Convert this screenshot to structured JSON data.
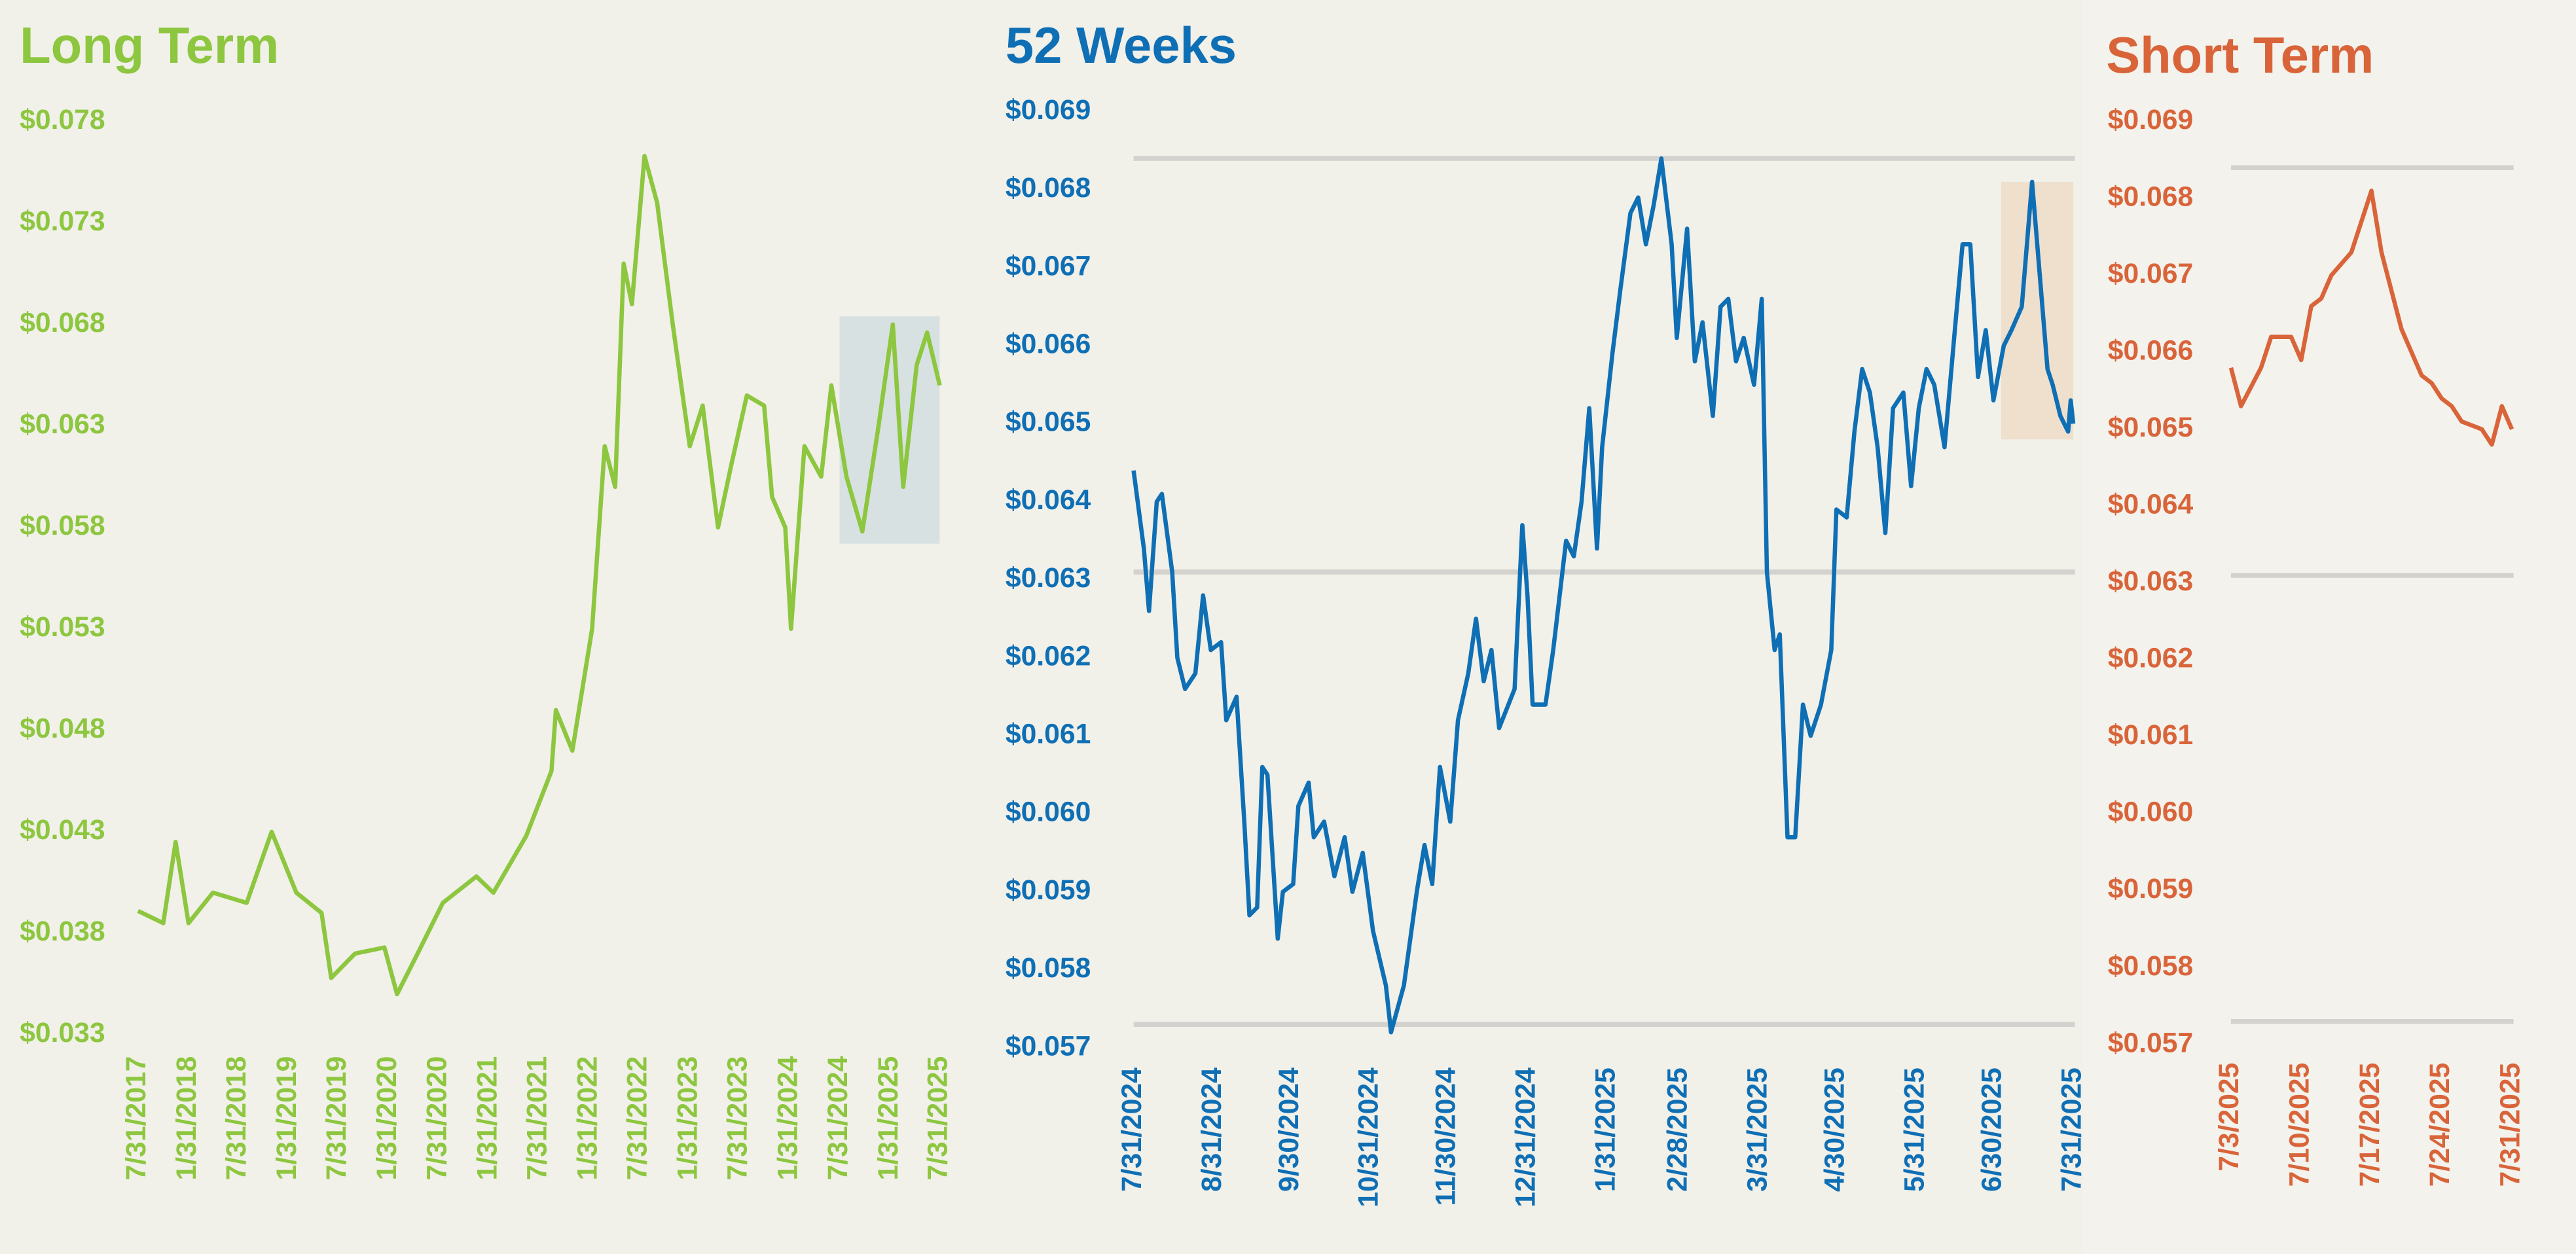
{
  "chart_data": [
    {
      "type": "line",
      "title": "Long Term",
      "color": "#8dc63f",
      "highlight_color": "#d3dedf",
      "x": [
        "7/31/2017",
        "10/31/2017",
        "12/15/2017",
        "1/31/2018",
        "4/30/2018",
        "8/31/2018",
        "11/30/2018",
        "2/28/2019",
        "5/31/2019",
        "7/5/2019",
        "9/30/2019",
        "1/15/2020",
        "3/1/2020",
        "5/15/2020",
        "8/15/2020",
        "12/15/2020",
        "2/15/2021",
        "6/15/2021",
        "9/15/2021",
        "10/1/2021",
        "11/30/2021",
        "2/10/2022",
        "3/28/2022",
        "5/5/2022",
        "6/5/2022",
        "7/5/2022",
        "8/20/2022",
        "10/5/2022",
        "12/1/2022",
        "2/1/2023",
        "3/20/2023",
        "5/15/2023",
        "7/1/2023",
        "8/28/2023",
        "10/30/2023",
        "11/28/2023",
        "1/15/2024",
        "2/5/2024",
        "3/25/2024",
        "5/25/2024",
        "7/1/2024",
        "8/25/2024",
        "10/22/2024",
        "12/20/2024",
        "2/10/2025",
        "3/20/2025",
        "5/8/2025",
        "6/15/2025",
        "7/31/2025"
      ],
      "values": [
        0.0391,
        0.0385,
        0.0425,
        0.0385,
        0.04,
        0.0395,
        0.043,
        0.04,
        0.039,
        0.0358,
        0.037,
        0.0373,
        0.035,
        0.037,
        0.0395,
        0.0408,
        0.04,
        0.0428,
        0.046,
        0.049,
        0.047,
        0.053,
        0.062,
        0.06,
        0.071,
        0.069,
        0.0763,
        0.074,
        0.068,
        0.062,
        0.064,
        0.058,
        0.061,
        0.0645,
        0.064,
        0.0595,
        0.058,
        0.053,
        0.062,
        0.0605,
        0.065,
        0.0605,
        0.0578,
        0.063,
        0.068,
        0.06,
        0.066,
        0.0676,
        0.065
      ],
      "xlim": [
        "7/31/2017",
        "7/31/2025"
      ],
      "xticks": [
        "7/31/2017",
        "1/31/2018",
        "7/31/2018",
        "1/31/2019",
        "7/31/2019",
        "1/31/2020",
        "7/31/2020",
        "1/31/2021",
        "7/31/2021",
        "1/31/2022",
        "7/31/2022",
        "1/31/2023",
        "7/31/2023",
        "1/31/2024",
        "7/31/2024",
        "1/31/2025",
        "7/31/2025"
      ],
      "ylim": [
        0.033,
        0.078
      ],
      "yticks": [
        {
          "value": 0.033,
          "label": "$0.033"
        },
        {
          "value": 0.038,
          "label": "$0.038"
        },
        {
          "value": 0.043,
          "label": "$0.043"
        },
        {
          "value": 0.048,
          "label": "$0.048"
        },
        {
          "value": 0.053,
          "label": "$0.053"
        },
        {
          "value": 0.058,
          "label": "$0.058"
        },
        {
          "value": 0.063,
          "label": "$0.063"
        },
        {
          "value": 0.068,
          "label": "$0.068"
        },
        {
          "value": 0.073,
          "label": "$0.073"
        },
        {
          "value": 0.078,
          "label": "$0.078"
        }
      ]
    },
    {
      "type": "line",
      "title": "52 Weeks",
      "color": "#0f6fb5",
      "highlight_color": "#eedcc8",
      "hlines": [
        0.0684,
        0.0631,
        0.0573
      ],
      "hline_color": "#d3d2ce",
      "x": [
        "7/31/2024",
        "8/4/2024",
        "8/6/2024",
        "8/9/2024",
        "8/11/2024",
        "8/15/2024",
        "8/17/2024",
        "8/20/2024",
        "8/24/2024",
        "8/27/2024",
        "8/30/2024",
        "9/3/2024",
        "9/5/2024",
        "9/9/2024",
        "9/12/2024",
        "9/14/2024",
        "9/17/2024",
        "9/19/2024",
        "9/21/2024",
        "9/25/2024",
        "9/27/2024",
        "10/1/2024",
        "10/3/2024",
        "10/7/2024",
        "10/9/2024",
        "10/13/2024",
        "10/17/2024",
        "10/21/2024",
        "10/24/2024",
        "10/28/2024",
        "11/1/2024",
        "11/6/2024",
        "11/8/2024",
        "11/13/2024",
        "11/18/2024",
        "11/21/2024",
        "11/24/2024",
        "11/27/2024",
        "12/1/2024",
        "12/4/2024",
        "12/8/2024",
        "12/11/2024",
        "12/14/2024",
        "12/17/2024",
        "12/20/2024",
        "12/26/2024",
        "12/29/2024",
        "12/31/2024",
        "1/2/2025",
        "1/7/2025",
        "1/10/2025",
        "1/15/2025",
        "1/18/2025",
        "1/21/2025",
        "1/24/2025",
        "1/27/2025",
        "1/29/2025",
        "2/2/2025",
        "2/5/2025",
        "2/9/2025",
        "2/12/2025",
        "2/15/2025",
        "2/18/2025",
        "2/21/2025",
        "2/25/2025",
        "2/27/2025",
        "3/3/2025",
        "3/6/2025",
        "3/9/2025",
        "3/13/2025",
        "3/16/2025",
        "3/19/2025",
        "3/22/2025",
        "3/25/2025",
        "3/29/2025",
        "4/1/2025",
        "4/3/2025",
        "4/6/2025",
        "4/8/2025",
        "4/11/2025",
        "4/14/2025",
        "4/17/2025",
        "4/20/2025",
        "4/24/2025",
        "4/28/2025",
        "4/30/2025",
        "5/4/2025",
        "5/7/2025",
        "5/10/2025",
        "5/13/2025",
        "5/16/2025",
        "5/19/2025",
        "5/22/2025",
        "5/26/2025",
        "5/29/2025",
        "6/1/2025",
        "6/4/2025",
        "6/7/2025",
        "6/11/2025",
        "6/15/2025",
        "6/18/2025",
        "6/21/2025",
        "6/24/2025",
        "6/27/2025",
        "6/30/2025",
        "7/4/2025",
        "7/7/2025",
        "7/11/2025",
        "7/15/2025",
        "7/18/2025",
        "7/21/2025",
        "7/23/2025",
        "7/26/2025",
        "7/29/2025",
        "7/30/2025",
        "7/31/2025"
      ],
      "values": [
        0.0644,
        0.0634,
        0.0626,
        0.064,
        0.0641,
        0.0631,
        0.062,
        0.0616,
        0.0618,
        0.0628,
        0.0621,
        0.0622,
        0.0612,
        0.0615,
        0.0599,
        0.0587,
        0.0588,
        0.0606,
        0.0605,
        0.0584,
        0.059,
        0.0591,
        0.0601,
        0.0604,
        0.0597,
        0.0599,
        0.0592,
        0.0597,
        0.059,
        0.0595,
        0.0585,
        0.0578,
        0.0572,
        0.0578,
        0.059,
        0.0596,
        0.0591,
        0.0606,
        0.0599,
        0.0612,
        0.0618,
        0.0625,
        0.0617,
        0.0621,
        0.0611,
        0.0616,
        0.0637,
        0.0628,
        0.0614,
        0.0614,
        0.0621,
        0.0635,
        0.0633,
        0.064,
        0.0652,
        0.0634,
        0.0647,
        0.0659,
        0.0667,
        0.0677,
        0.0679,
        0.0673,
        0.0678,
        0.0684,
        0.0673,
        0.0661,
        0.0675,
        0.0658,
        0.0663,
        0.0651,
        0.0665,
        0.0666,
        0.0658,
        0.0661,
        0.0655,
        0.0666,
        0.0631,
        0.0621,
        0.0623,
        0.0597,
        0.0597,
        0.0614,
        0.061,
        0.0614,
        0.0621,
        0.0639,
        0.0638,
        0.0649,
        0.0657,
        0.0654,
        0.0647,
        0.0636,
        0.0652,
        0.0654,
        0.0642,
        0.0652,
        0.0657,
        0.0655,
        0.0647,
        0.0662,
        0.0673,
        0.0673,
        0.0656,
        0.0662,
        0.0653,
        0.066,
        0.0662,
        0.0665,
        0.0681,
        0.0669,
        0.0657,
        0.0655,
        0.0651,
        0.0649,
        0.0653,
        0.065
      ],
      "xlim": [
        "7/31/2024",
        "7/31/2025"
      ],
      "xticks": [
        "7/31/2024",
        "8/31/2024",
        "9/30/2024",
        "10/31/2024",
        "11/30/2024",
        "12/31/2024",
        "1/31/2025",
        "2/28/2025",
        "3/31/2025",
        "4/30/2025",
        "5/31/2025",
        "6/30/2025",
        "7/31/2025"
      ],
      "ylim": [
        0.057,
        0.069
      ],
      "yticks": [
        {
          "value": 0.057,
          "label": "$0.057"
        },
        {
          "value": 0.058,
          "label": "$0.058"
        },
        {
          "value": 0.059,
          "label": "$0.059"
        },
        {
          "value": 0.06,
          "label": "$0.060"
        },
        {
          "value": 0.061,
          "label": "$0.061"
        },
        {
          "value": 0.062,
          "label": "$0.062"
        },
        {
          "value": 0.063,
          "label": "$0.063"
        },
        {
          "value": 0.064,
          "label": "$0.064"
        },
        {
          "value": 0.065,
          "label": "$0.065"
        },
        {
          "value": 0.066,
          "label": "$0.066"
        },
        {
          "value": 0.067,
          "label": "$0.067"
        },
        {
          "value": 0.068,
          "label": "$0.068"
        },
        {
          "value": 0.069,
          "label": "$0.069"
        }
      ]
    },
    {
      "type": "line",
      "title": "Short Term",
      "color": "#d9643a",
      "hlines": [
        0.0684,
        0.0631,
        0.0573
      ],
      "hline_color": "#d3d2ce",
      "x": [
        "7/3/2025",
        "7/4/2025",
        "7/6/2025",
        "7/7/2025",
        "7/9/2025",
        "7/10/2025",
        "7/11/2025",
        "7/12/2025",
        "7/13/2025",
        "7/15/2025",
        "7/17/2025",
        "7/18/2025",
        "7/19/2025",
        "7/20/2025",
        "7/22/2025",
        "7/23/2025",
        "7/24/2025",
        "7/25/2025",
        "7/26/2025",
        "7/28/2025",
        "7/29/2025",
        "7/30/2025",
        "7/31/2025"
      ],
      "values": [
        0.0658,
        0.0653,
        0.0658,
        0.0662,
        0.0662,
        0.0659,
        0.0666,
        0.0667,
        0.067,
        0.0673,
        0.0681,
        0.0673,
        0.0668,
        0.0663,
        0.0657,
        0.0656,
        0.0654,
        0.0653,
        0.0651,
        0.065,
        0.0648,
        0.0653,
        0.065
      ],
      "xlim": [
        "7/3/2025",
        "7/31/2025"
      ],
      "xticks": [
        "7/3/2025",
        "7/10/2025",
        "7/17/2025",
        "7/24/2025",
        "7/31/2025"
      ],
      "ylim": [
        0.057,
        0.069
      ],
      "yticks": [
        {
          "value": 0.057,
          "label": "$0.057"
        },
        {
          "value": 0.058,
          "label": "$0.058"
        },
        {
          "value": 0.059,
          "label": "$0.059"
        },
        {
          "value": 0.06,
          "label": "$0.060"
        },
        {
          "value": 0.061,
          "label": "$0.061"
        },
        {
          "value": 0.062,
          "label": "$0.062"
        },
        {
          "value": 0.063,
          "label": "$0.063"
        },
        {
          "value": 0.064,
          "label": "$0.064"
        },
        {
          "value": 0.065,
          "label": "$0.065"
        },
        {
          "value": 0.066,
          "label": "$0.066"
        },
        {
          "value": 0.067,
          "label": "$0.067"
        },
        {
          "value": 0.068,
          "label": "$0.068"
        },
        {
          "value": 0.069,
          "label": "$0.069"
        }
      ]
    }
  ]
}
